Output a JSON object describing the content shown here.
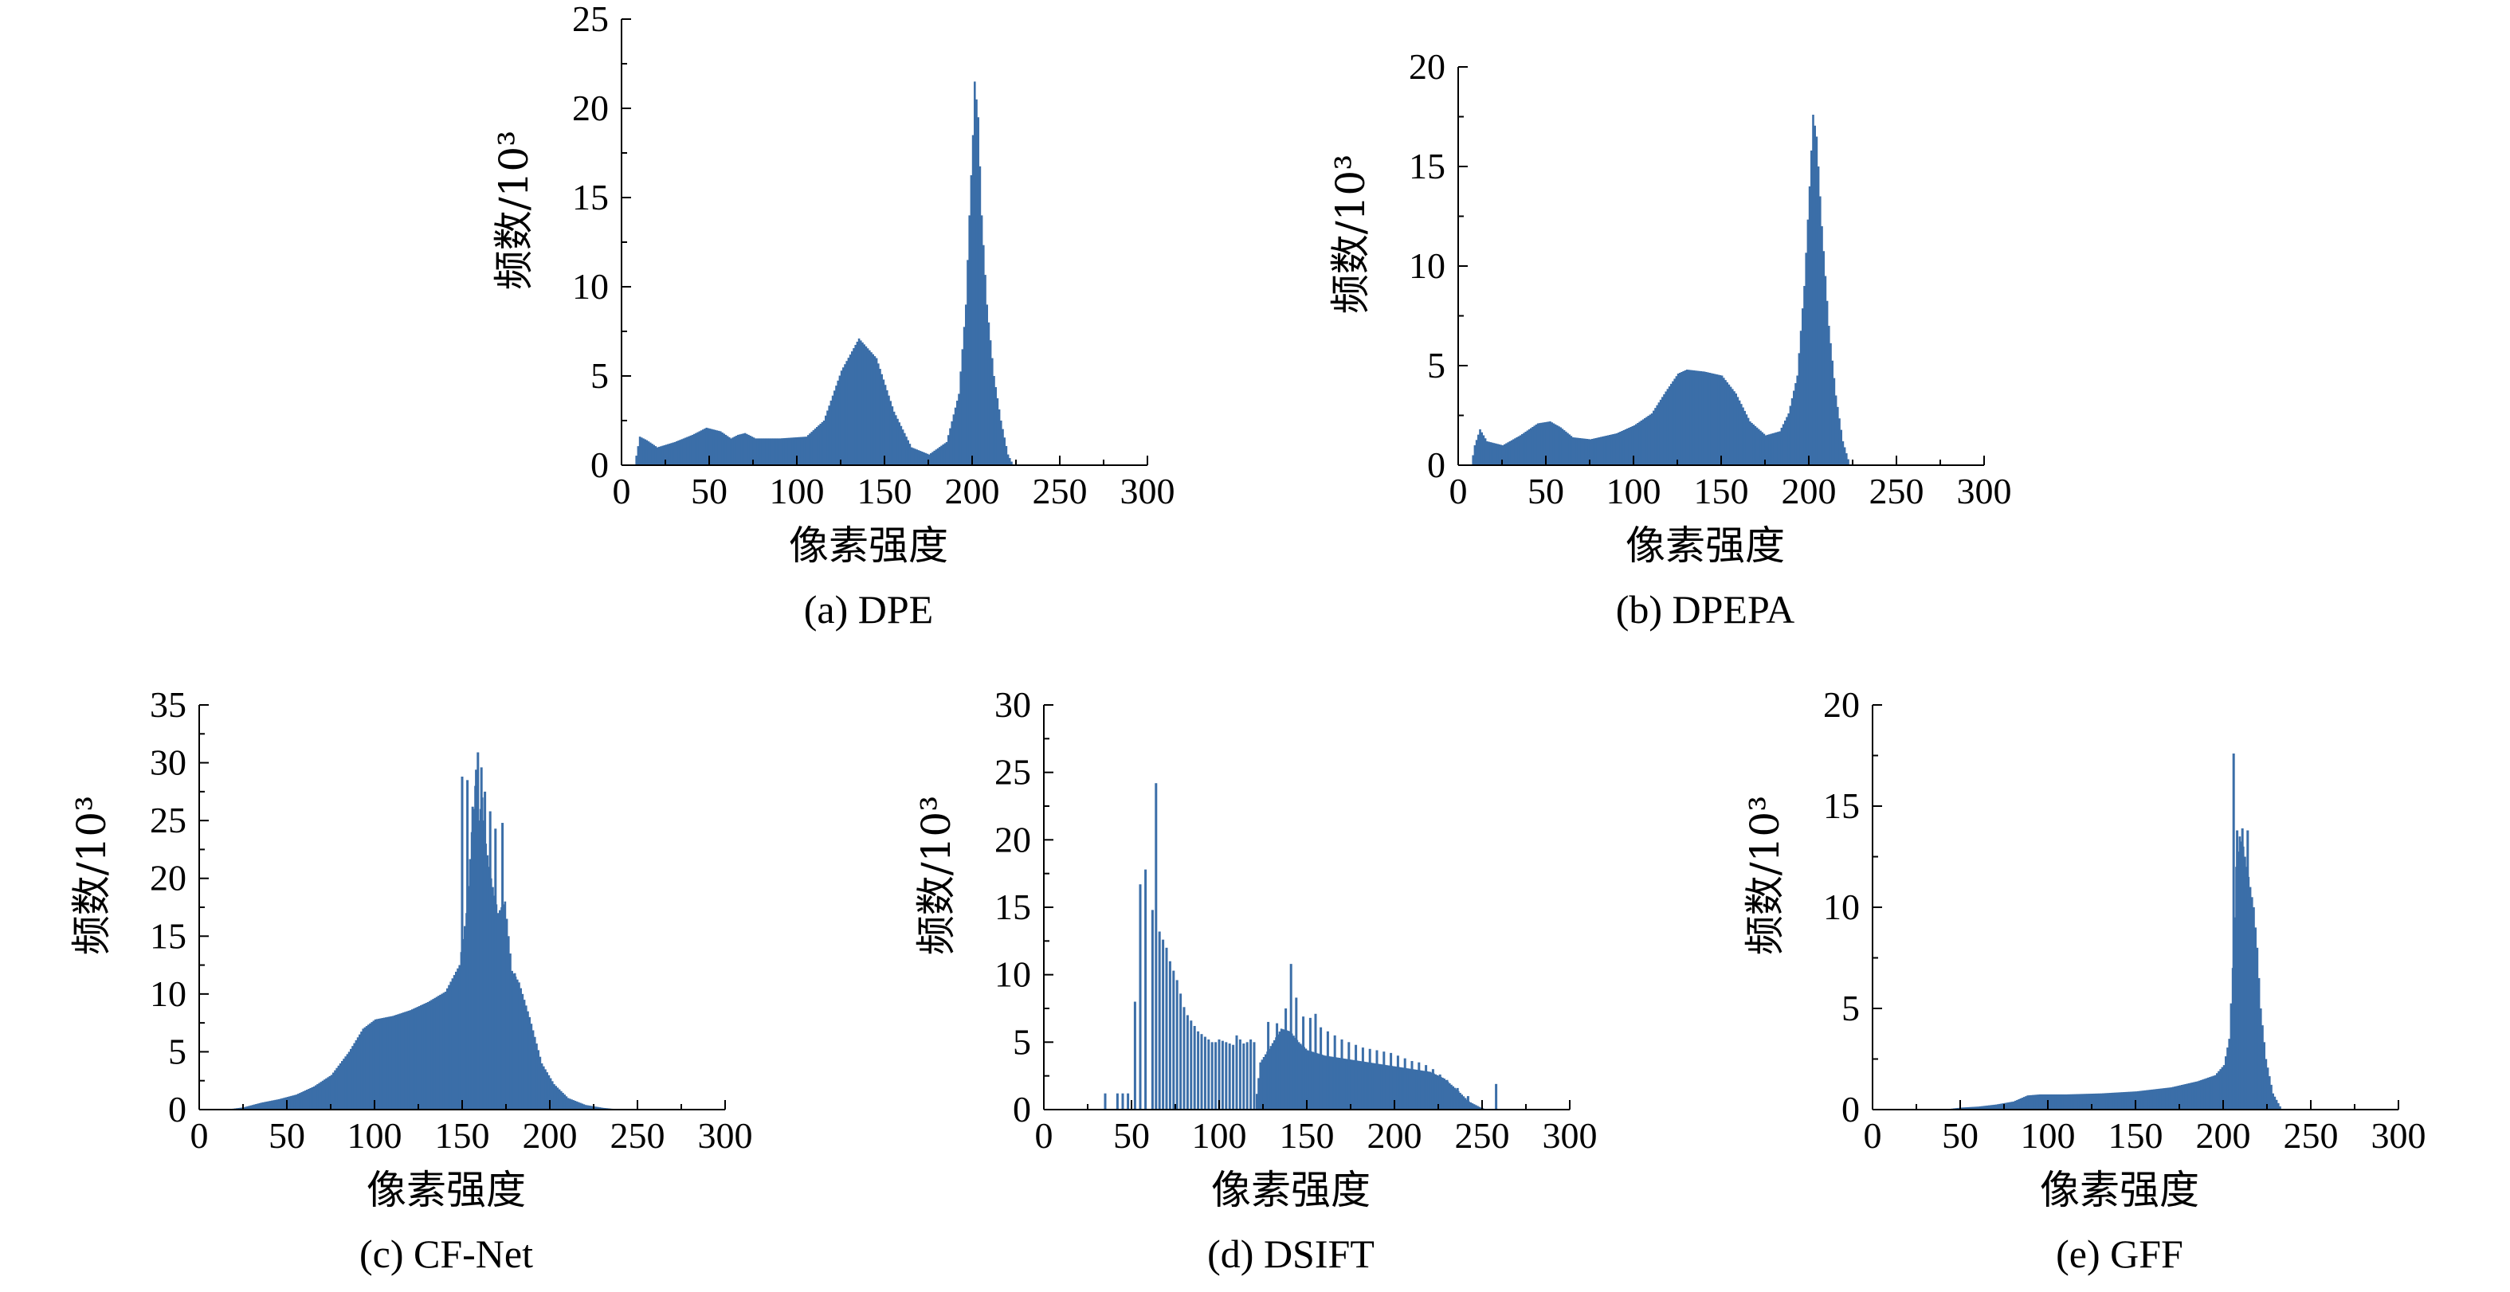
{
  "chart_data": [
    {
      "type": "bar",
      "id": "a",
      "caption": "(a) DPE",
      "xlabel": "像素强度",
      "ylabel": "频数/10³",
      "xlim": [
        0,
        300
      ],
      "ylim": [
        0,
        25
      ],
      "xticks": [
        "0",
        "50",
        "100",
        "150",
        "200",
        "250",
        "300"
      ],
      "yticks": [
        "0",
        "5",
        "10",
        "15",
        "20",
        "25"
      ],
      "bar_color": "#3b6ea8",
      "profile": [
        [
          7,
          0
        ],
        [
          10,
          1.6
        ],
        [
          14,
          1.4
        ],
        [
          20,
          1.0
        ],
        [
          30,
          1.3
        ],
        [
          40,
          1.7
        ],
        [
          48,
          2.1
        ],
        [
          56,
          1.9
        ],
        [
          62,
          1.5
        ],
        [
          66,
          1.7
        ],
        [
          70,
          1.8
        ],
        [
          76,
          1.5
        ],
        [
          90,
          1.5
        ],
        [
          105,
          1.6
        ],
        [
          115,
          2.5
        ],
        [
          125,
          5.3
        ],
        [
          135,
          7.1
        ],
        [
          145,
          6.0
        ],
        [
          155,
          3.0
        ],
        [
          165,
          1.0
        ],
        [
          175,
          0.6
        ],
        [
          185,
          1.3
        ],
        [
          192,
          4.0
        ],
        [
          196,
          9.0
        ],
        [
          198,
          14
        ],
        [
          200,
          18.5
        ],
        [
          201,
          21.5
        ],
        [
          203,
          19.5
        ],
        [
          205,
          14
        ],
        [
          208,
          9.0
        ],
        [
          212,
          5.0
        ],
        [
          216,
          2.5
        ],
        [
          220,
          0.6
        ],
        [
          223,
          0
        ]
      ]
    },
    {
      "type": "bar",
      "id": "b",
      "caption": "(b) DPEPA",
      "xlabel": "像素强度",
      "ylabel": "频数/10³",
      "xlim": [
        0,
        300
      ],
      "ylim": [
        0,
        20
      ],
      "xticks": [
        "0",
        "50",
        "100",
        "150",
        "200",
        "250",
        "300"
      ],
      "yticks": [
        "0",
        "5",
        "10",
        "15",
        "20"
      ],
      "bar_color": "#3b6ea8",
      "profile": [
        [
          7,
          0
        ],
        [
          9,
          1.0
        ],
        [
          12,
          1.8
        ],
        [
          16,
          1.2
        ],
        [
          25,
          1.0
        ],
        [
          35,
          1.5
        ],
        [
          45,
          2.1
        ],
        [
          52,
          2.2
        ],
        [
          58,
          1.9
        ],
        [
          65,
          1.4
        ],
        [
          75,
          1.3
        ],
        [
          90,
          1.6
        ],
        [
          100,
          2.0
        ],
        [
          110,
          2.6
        ],
        [
          118,
          3.7
        ],
        [
          125,
          4.6
        ],
        [
          130,
          4.8
        ],
        [
          140,
          4.7
        ],
        [
          150,
          4.5
        ],
        [
          158,
          3.6
        ],
        [
          166,
          2.2
        ],
        [
          175,
          1.5
        ],
        [
          183,
          1.7
        ],
        [
          188,
          2.6
        ],
        [
          193,
          4.5
        ],
        [
          197,
          9.0
        ],
        [
          200,
          14
        ],
        [
          202,
          17.6
        ],
        [
          204,
          16.5
        ],
        [
          207,
          12
        ],
        [
          211,
          7.0
        ],
        [
          215,
          3.5
        ],
        [
          219,
          1.2
        ],
        [
          223,
          0
        ]
      ]
    },
    {
      "type": "bar",
      "id": "c",
      "caption": "(c) CF-Net",
      "xlabel": "像素强度",
      "ylabel": "频数/10³",
      "xlim": [
        0,
        300
      ],
      "ylim": [
        0,
        35
      ],
      "xticks": [
        "0",
        "50",
        "100",
        "150",
        "200",
        "250",
        "300"
      ],
      "yticks": [
        "0",
        "5",
        "10",
        "15",
        "20",
        "25",
        "30",
        "35"
      ],
      "bar_color": "#3b6ea8",
      "profile": [
        [
          15,
          0
        ],
        [
          25,
          0.2
        ],
        [
          35,
          0.6
        ],
        [
          45,
          0.9
        ],
        [
          55,
          1.3
        ],
        [
          65,
          2.0
        ],
        [
          75,
          3.0
        ],
        [
          85,
          5.0
        ],
        [
          93,
          7.0
        ],
        [
          100,
          7.8
        ],
        [
          110,
          8.1
        ],
        [
          120,
          8.6
        ],
        [
          130,
          9.3
        ],
        [
          140,
          10.2
        ],
        [
          148,
          12.5
        ],
        [
          152,
          17
        ],
        [
          155,
          24
        ],
        [
          157,
          28
        ],
        [
          159,
          25
        ],
        [
          161,
          27
        ],
        [
          163,
          23
        ],
        [
          166,
          20
        ],
        [
          170,
          17
        ],
        [
          174,
          18
        ],
        [
          178,
          12
        ],
        [
          182,
          11
        ],
        [
          188,
          8.0
        ],
        [
          195,
          4.0
        ],
        [
          202,
          2.2
        ],
        [
          210,
          1.0
        ],
        [
          220,
          0.4
        ],
        [
          230,
          0.15
        ],
        [
          240,
          0
        ]
      ],
      "spikes": [
        [
          150,
          28.8
        ],
        [
          153,
          28.5
        ],
        [
          156,
          26.2
        ],
        [
          158,
          29.4
        ],
        [
          159,
          30.9
        ],
        [
          161,
          29.6
        ],
        [
          163,
          27.5
        ],
        [
          166,
          25.8
        ],
        [
          169,
          24.3
        ],
        [
          173,
          24.8
        ],
        [
          180,
          11.8
        ]
      ]
    },
    {
      "type": "bar",
      "id": "d",
      "caption": "(d) DSIFT",
      "xlabel": "像素强度",
      "ylabel": "频数/10³",
      "xlim": [
        0,
        300
      ],
      "ylim": [
        0,
        30
      ],
      "xticks": [
        "0",
        "50",
        "100",
        "150",
        "200",
        "250",
        "300"
      ],
      "yticks": [
        "0",
        "5",
        "10",
        "15",
        "20",
        "25",
        "30"
      ],
      "bar_color": "#3b6ea8",
      "profile": [
        [
          0,
          0
        ],
        [
          120,
          0
        ],
        [
          123,
          3.5
        ],
        [
          128,
          4.5
        ],
        [
          135,
          6.0
        ],
        [
          140,
          5.8
        ],
        [
          145,
          5.0
        ],
        [
          150,
          4.4
        ],
        [
          160,
          4.0
        ],
        [
          170,
          3.8
        ],
        [
          180,
          3.6
        ],
        [
          190,
          3.4
        ],
        [
          200,
          3.2
        ],
        [
          210,
          3.0
        ],
        [
          220,
          2.8
        ],
        [
          228,
          2.3
        ],
        [
          235,
          1.5
        ],
        [
          242,
          0.6
        ],
        [
          248,
          0.2
        ],
        [
          252,
          0
        ]
      ],
      "spikes": [
        [
          35,
          1.2
        ],
        [
          42,
          1.2
        ],
        [
          45,
          1.2
        ],
        [
          48,
          1.2
        ],
        [
          52,
          8.0
        ],
        [
          55,
          16.7
        ],
        [
          58,
          17.8
        ],
        [
          62,
          14.8
        ],
        [
          64,
          24.2
        ],
        [
          66,
          13.2
        ],
        [
          68,
          12.6
        ],
        [
          70,
          12.0
        ],
        [
          72,
          11.0
        ],
        [
          74,
          10.3
        ],
        [
          76,
          9.6
        ],
        [
          78,
          8.6
        ],
        [
          80,
          7.6
        ],
        [
          82,
          7.0
        ],
        [
          84,
          6.6
        ],
        [
          86,
          6.2
        ],
        [
          88,
          5.8
        ],
        [
          90,
          5.6
        ],
        [
          92,
          5.4
        ],
        [
          94,
          5.2
        ],
        [
          96,
          5.0
        ],
        [
          98,
          5.0
        ],
        [
          100,
          5.2
        ],
        [
          102,
          5.1
        ],
        [
          104,
          5.0
        ],
        [
          106,
          4.9
        ],
        [
          108,
          4.8
        ],
        [
          110,
          5.5
        ],
        [
          112,
          5.2
        ],
        [
          114,
          4.9
        ],
        [
          116,
          5.0
        ],
        [
          118,
          5.2
        ],
        [
          120,
          5.0
        ],
        [
          128,
          6.5
        ],
        [
          133,
          6.4
        ],
        [
          138,
          7.5
        ],
        [
          141,
          10.8
        ],
        [
          144,
          8.3
        ],
        [
          148,
          6.9
        ],
        [
          152,
          6.8
        ],
        [
          155,
          7.1
        ],
        [
          158,
          6.1
        ],
        [
          162,
          5.8
        ],
        [
          166,
          5.5
        ],
        [
          170,
          5.2
        ],
        [
          174,
          5.0
        ],
        [
          178,
          4.8
        ],
        [
          182,
          4.6
        ],
        [
          186,
          4.5
        ],
        [
          190,
          4.4
        ],
        [
          194,
          4.3
        ],
        [
          198,
          4.2
        ],
        [
          202,
          4.0
        ],
        [
          206,
          3.8
        ],
        [
          210,
          3.6
        ],
        [
          214,
          3.5
        ],
        [
          218,
          3.3
        ],
        [
          222,
          3.0
        ],
        [
          226,
          2.6
        ],
        [
          230,
          2.2
        ],
        [
          236,
          1.6
        ],
        [
          242,
          1.0
        ],
        [
          258,
          1.9
        ]
      ]
    },
    {
      "type": "bar",
      "id": "e",
      "caption": "(e) GFF",
      "xlabel": "像素强度",
      "ylabel": "频数/10³",
      "xlim": [
        0,
        300
      ],
      "ylim": [
        0,
        20
      ],
      "xticks": [
        "0",
        "50",
        "100",
        "150",
        "200",
        "250",
        "300"
      ],
      "yticks": [
        "0",
        "5",
        "10",
        "15",
        "20"
      ],
      "bar_color": "#3b6ea8",
      "profile": [
        [
          40,
          0
        ],
        [
          50,
          0.1
        ],
        [
          60,
          0.15
        ],
        [
          70,
          0.25
        ],
        [
          80,
          0.4
        ],
        [
          88,
          0.7
        ],
        [
          95,
          0.75
        ],
        [
          110,
          0.75
        ],
        [
          130,
          0.8
        ],
        [
          150,
          0.9
        ],
        [
          170,
          1.1
        ],
        [
          185,
          1.4
        ],
        [
          195,
          1.7
        ],
        [
          200,
          2.2
        ],
        [
          203,
          3.5
        ],
        [
          205,
          7.0
        ],
        [
          207,
          12
        ],
        [
          209,
          13.5
        ],
        [
          211,
          13
        ],
        [
          213,
          12
        ],
        [
          215,
          11
        ],
        [
          217,
          10
        ],
        [
          219,
          8.0
        ],
        [
          221,
          5.0
        ],
        [
          224,
          2.5
        ],
        [
          228,
          0.8
        ],
        [
          233,
          0
        ]
      ],
      "spikes": [
        [
          206,
          17.6
        ],
        [
          208,
          13.8
        ],
        [
          211,
          13.9
        ],
        [
          214,
          13.8
        ]
      ]
    }
  ]
}
